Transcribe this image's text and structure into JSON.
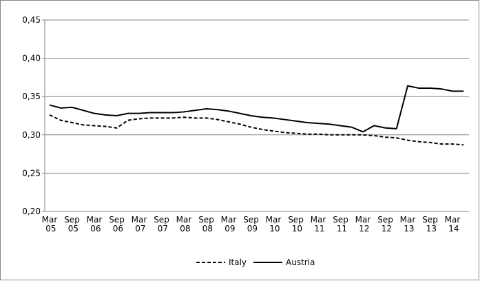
{
  "chart_data": {
    "type": "line",
    "categories": [
      "Mar 05",
      null,
      "Sep 05",
      null,
      "Mar 06",
      null,
      "Sep 06",
      null,
      "Mar 07",
      null,
      "Sep 07",
      null,
      "Mar 08",
      null,
      "Sep 08",
      null,
      "Mar 09",
      null,
      "Sep 09",
      null,
      "Mar 10",
      null,
      "Sep 10",
      null,
      "Mar 11",
      null,
      "Sep 11",
      null,
      "Mar 12",
      null,
      "Sep 12",
      null,
      "Mar 13",
      null,
      "Sep 13",
      null,
      "Mar 14",
      null
    ],
    "series": [
      {
        "name": "Italy",
        "color": "#000000",
        "dashed": true,
        "values": [
          0.326,
          0.319,
          0.316,
          0.313,
          0.312,
          0.311,
          0.309,
          0.319,
          0.321,
          0.322,
          0.322,
          0.322,
          0.323,
          0.322,
          0.322,
          0.32,
          0.317,
          0.314,
          0.31,
          0.307,
          0.305,
          0.303,
          0.302,
          0.301,
          0.301,
          0.3,
          0.3,
          0.3,
          0.3,
          0.299,
          0.297,
          0.296,
          0.293,
          0.291,
          0.29,
          0.288,
          0.288,
          0.287
        ]
      },
      {
        "name": "Austria",
        "color": "#000000",
        "dashed": false,
        "values": [
          0.339,
          0.335,
          0.336,
          0.332,
          0.328,
          0.326,
          0.325,
          0.328,
          0.328,
          0.329,
          0.329,
          0.329,
          0.33,
          0.332,
          0.334,
          0.333,
          0.331,
          0.328,
          0.325,
          0.323,
          0.322,
          0.32,
          0.318,
          0.316,
          0.315,
          0.314,
          0.312,
          0.31,
          0.304,
          0.312,
          0.309,
          0.308,
          0.364,
          0.361,
          0.361,
          0.36,
          0.357,
          0.357
        ]
      }
    ],
    "ylim": [
      0.2,
      0.45
    ],
    "yticks": [
      {
        "value": 0.2,
        "label": "0,20"
      },
      {
        "value": 0.25,
        "label": "0,25"
      },
      {
        "value": 0.3,
        "label": "0,30"
      },
      {
        "value": 0.35,
        "label": "0,35"
      },
      {
        "value": 0.4,
        "label": "0,40"
      },
      {
        "value": 0.45,
        "label": "0,45"
      }
    ],
    "grid": true,
    "legend": "bottom"
  }
}
